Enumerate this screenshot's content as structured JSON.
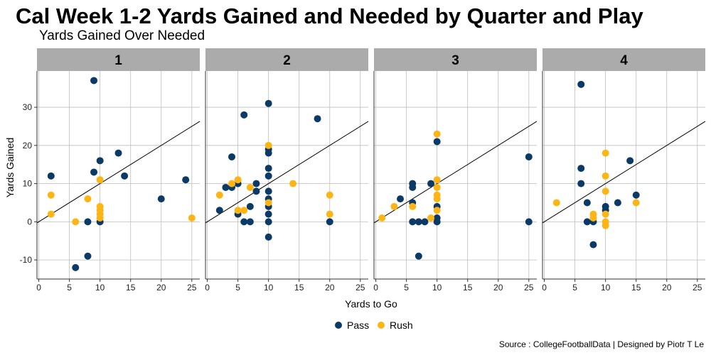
{
  "chart_data": {
    "type": "scatter",
    "title": "Cal Week 1-2 Yards Gained and Needed by Quarter and Play",
    "subtitle": "Yards Gained Over Needed",
    "xlabel": "Yards to Go",
    "ylabel": "Yards Gained",
    "caption": "Source : CollegeFootballData | Designed by Piotr T Le",
    "xlim": [
      -0.3,
      26.3
    ],
    "ylim": [
      -15,
      39.5
    ],
    "xticks": [
      0,
      5,
      10,
      15,
      20,
      25
    ],
    "yticks": [
      -10,
      0,
      10,
      20,
      30
    ],
    "reference_line": "y = x",
    "colors": {
      "Pass": "#0b3a66",
      "Rush": "#fdb515",
      "strip": "#ababab",
      "grid": "#bdbdbd",
      "line": "#000000"
    },
    "legend": [
      {
        "name": "Pass",
        "color": "#0b3a66"
      },
      {
        "name": "Rush",
        "color": "#fdb515"
      }
    ],
    "facets": [
      {
        "label": "1",
        "points": [
          {
            "x": 2,
            "y": 12,
            "type": "Pass"
          },
          {
            "x": 6,
            "y": -12,
            "type": "Pass"
          },
          {
            "x": 8,
            "y": 0,
            "type": "Pass"
          },
          {
            "x": 8,
            "y": -9,
            "type": "Pass"
          },
          {
            "x": 9,
            "y": 37,
            "type": "Pass"
          },
          {
            "x": 9,
            "y": 13,
            "type": "Pass"
          },
          {
            "x": 10,
            "y": 16,
            "type": "Pass"
          },
          {
            "x": 10,
            "y": 0,
            "type": "Pass"
          },
          {
            "x": 13,
            "y": 18,
            "type": "Pass"
          },
          {
            "x": 14,
            "y": 12,
            "type": "Pass"
          },
          {
            "x": 20,
            "y": 6,
            "type": "Pass"
          },
          {
            "x": 24,
            "y": 11,
            "type": "Pass"
          },
          {
            "x": 2,
            "y": 7,
            "type": "Rush"
          },
          {
            "x": 2,
            "y": 2,
            "type": "Rush"
          },
          {
            "x": 6,
            "y": 0,
            "type": "Rush"
          },
          {
            "x": 8,
            "y": 6,
            "type": "Rush"
          },
          {
            "x": 10,
            "y": 11,
            "type": "Rush"
          },
          {
            "x": 10,
            "y": 4,
            "type": "Rush"
          },
          {
            "x": 10,
            "y": 3,
            "type": "Rush"
          },
          {
            "x": 10,
            "y": 2,
            "type": "Rush"
          },
          {
            "x": 10,
            "y": 1,
            "type": "Rush"
          },
          {
            "x": 25,
            "y": 1,
            "type": "Rush"
          }
        ]
      },
      {
        "label": "2",
        "points": [
          {
            "x": 2,
            "y": 3,
            "type": "Pass"
          },
          {
            "x": 3,
            "y": 9,
            "type": "Pass"
          },
          {
            "x": 4,
            "y": 17,
            "type": "Pass"
          },
          {
            "x": 4,
            "y": 9,
            "type": "Pass"
          },
          {
            "x": 5,
            "y": 10,
            "type": "Pass"
          },
          {
            "x": 5,
            "y": 2,
            "type": "Pass"
          },
          {
            "x": 6,
            "y": 28,
            "type": "Pass"
          },
          {
            "x": 6,
            "y": 0,
            "type": "Pass"
          },
          {
            "x": 7,
            "y": 4,
            "type": "Pass"
          },
          {
            "x": 7,
            "y": 0,
            "type": "Pass"
          },
          {
            "x": 8,
            "y": 10,
            "type": "Pass"
          },
          {
            "x": 8,
            "y": 8,
            "type": "Pass"
          },
          {
            "x": 10,
            "y": 31,
            "type": "Pass"
          },
          {
            "x": 10,
            "y": 19,
            "type": "Pass"
          },
          {
            "x": 10,
            "y": 18,
            "type": "Pass"
          },
          {
            "x": 10,
            "y": 14,
            "type": "Pass"
          },
          {
            "x": 10,
            "y": 12,
            "type": "Pass"
          },
          {
            "x": 10,
            "y": 8,
            "type": "Pass"
          },
          {
            "x": 10,
            "y": 6,
            "type": "Pass"
          },
          {
            "x": 10,
            "y": 4,
            "type": "Pass"
          },
          {
            "x": 10,
            "y": 2,
            "type": "Pass"
          },
          {
            "x": 10,
            "y": 0,
            "type": "Pass"
          },
          {
            "x": 10,
            "y": -4,
            "type": "Pass"
          },
          {
            "x": 18,
            "y": 27,
            "type": "Pass"
          },
          {
            "x": 20,
            "y": 0,
            "type": "Pass"
          },
          {
            "x": 2,
            "y": 7,
            "type": "Rush"
          },
          {
            "x": 4,
            "y": 10,
            "type": "Rush"
          },
          {
            "x": 5,
            "y": 11,
            "type": "Rush"
          },
          {
            "x": 5,
            "y": 3,
            "type": "Rush"
          },
          {
            "x": 6,
            "y": 3,
            "type": "Rush"
          },
          {
            "x": 7,
            "y": 9,
            "type": "Rush"
          },
          {
            "x": 10,
            "y": 20,
            "type": "Rush"
          },
          {
            "x": 10,
            "y": 5,
            "type": "Rush"
          },
          {
            "x": 14,
            "y": 10,
            "type": "Rush"
          },
          {
            "x": 20,
            "y": 7,
            "type": "Rush"
          },
          {
            "x": 20,
            "y": 2,
            "type": "Rush"
          }
        ]
      },
      {
        "label": "3",
        "points": [
          {
            "x": 4,
            "y": 6,
            "type": "Pass"
          },
          {
            "x": 6,
            "y": 10,
            "type": "Pass"
          },
          {
            "x": 6,
            "y": 9,
            "type": "Pass"
          },
          {
            "x": 6,
            "y": 5,
            "type": "Pass"
          },
          {
            "x": 6,
            "y": 0,
            "type": "Pass"
          },
          {
            "x": 7,
            "y": 0,
            "type": "Pass"
          },
          {
            "x": 7,
            "y": -9,
            "type": "Pass"
          },
          {
            "x": 8,
            "y": 0,
            "type": "Pass"
          },
          {
            "x": 9,
            "y": 10,
            "type": "Pass"
          },
          {
            "x": 10,
            "y": 21,
            "type": "Pass"
          },
          {
            "x": 10,
            "y": 4,
            "type": "Pass"
          },
          {
            "x": 10,
            "y": 1,
            "type": "Pass"
          },
          {
            "x": 10,
            "y": 0,
            "type": "Pass"
          },
          {
            "x": 25,
            "y": 17,
            "type": "Pass"
          },
          {
            "x": 25,
            "y": 0,
            "type": "Pass"
          },
          {
            "x": 1,
            "y": 1,
            "type": "Rush"
          },
          {
            "x": 3,
            "y": 4,
            "type": "Rush"
          },
          {
            "x": 6,
            "y": 4,
            "type": "Rush"
          },
          {
            "x": 9,
            "y": 1,
            "type": "Rush"
          },
          {
            "x": 10,
            "y": 23,
            "type": "Rush"
          },
          {
            "x": 10,
            "y": 11,
            "type": "Rush"
          },
          {
            "x": 10,
            "y": 9,
            "type": "Rush"
          },
          {
            "x": 10,
            "y": 7,
            "type": "Rush"
          },
          {
            "x": 10,
            "y": 6,
            "type": "Rush"
          },
          {
            "x": 10,
            "y": 3,
            "type": "Rush"
          }
        ]
      },
      {
        "label": "4",
        "points": [
          {
            "x": 6,
            "y": 36,
            "type": "Pass"
          },
          {
            "x": 6,
            "y": 14,
            "type": "Pass"
          },
          {
            "x": 6,
            "y": 10,
            "type": "Pass"
          },
          {
            "x": 7,
            "y": 5,
            "type": "Pass"
          },
          {
            "x": 7,
            "y": 0,
            "type": "Pass"
          },
          {
            "x": 8,
            "y": 0,
            "type": "Pass"
          },
          {
            "x": 8,
            "y": -6,
            "type": "Pass"
          },
          {
            "x": 10,
            "y": 4,
            "type": "Pass"
          },
          {
            "x": 10,
            "y": 3,
            "type": "Pass"
          },
          {
            "x": 12,
            "y": 5,
            "type": "Pass"
          },
          {
            "x": 14,
            "y": 16,
            "type": "Pass"
          },
          {
            "x": 15,
            "y": 7,
            "type": "Pass"
          },
          {
            "x": 2,
            "y": 5,
            "type": "Rush"
          },
          {
            "x": 8,
            "y": 2,
            "type": "Rush"
          },
          {
            "x": 8,
            "y": 1,
            "type": "Rush"
          },
          {
            "x": 10,
            "y": 18,
            "type": "Rush"
          },
          {
            "x": 10,
            "y": 12,
            "type": "Rush"
          },
          {
            "x": 10,
            "y": 8,
            "type": "Rush"
          },
          {
            "x": 10,
            "y": 2,
            "type": "Rush"
          },
          {
            "x": 10,
            "y": 0,
            "type": "Rush"
          },
          {
            "x": 10,
            "y": -1,
            "type": "Rush"
          },
          {
            "x": 15,
            "y": 5,
            "type": "Rush"
          }
        ]
      }
    ]
  }
}
